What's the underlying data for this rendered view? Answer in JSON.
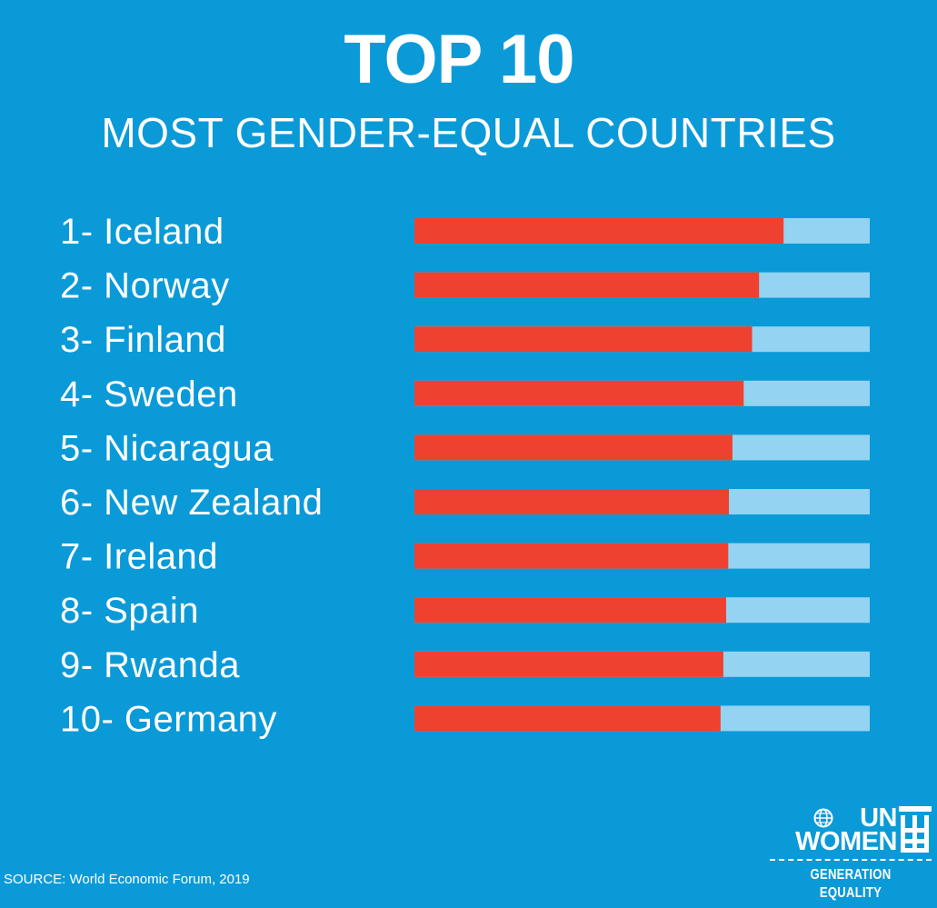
{
  "title": "TOP 10",
  "subtitle": "MOST GENDER-EQUAL COUNTRIES",
  "source": "SOURCE: World Economic Forum, 2019",
  "logo": {
    "line1": "UN",
    "line2": "WOMEN",
    "tagline": "GENERATION EQUALITY"
  },
  "colors": {
    "background": "#0b9ad8",
    "bar_fill": "#ee4130",
    "bar_track": "#94d3f1",
    "text": "#ffffff"
  },
  "chart_data": {
    "type": "bar",
    "orientation": "horizontal",
    "categories": [
      "1- Iceland",
      "2- Norway",
      "3- Finland",
      "4- Sweden",
      "5- Nicaragua",
      "6- New Zealand",
      "7- Ireland",
      "8- Spain",
      "9- Rwanda",
      "10- Germany"
    ],
    "values": [
      0.877,
      0.842,
      0.832,
      0.82,
      0.804,
      0.799,
      0.798,
      0.795,
      0.791,
      0.787
    ],
    "xlim": [
      0.35,
      1.0
    ],
    "grid": false,
    "legend": "none"
  }
}
